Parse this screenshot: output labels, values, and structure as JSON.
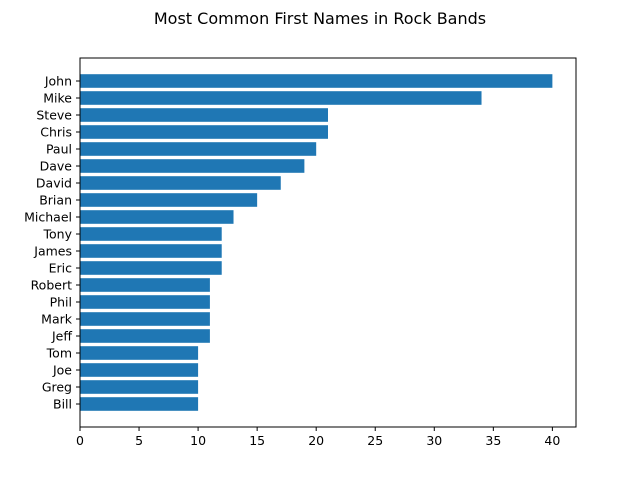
{
  "chart_data": {
    "type": "bar",
    "orientation": "horizontal",
    "title": "Most Common First Names in Rock Bands",
    "xlabel": "",
    "ylabel": "",
    "categories": [
      "John",
      "Mike",
      "Steve",
      "Chris",
      "Paul",
      "Dave",
      "David",
      "Brian",
      "Michael",
      "Tony",
      "James",
      "Eric",
      "Robert",
      "Phil",
      "Mark",
      "Jeff",
      "Tom",
      "Joe",
      "Greg",
      "Bill"
    ],
    "values": [
      40,
      34,
      21,
      21,
      20,
      19,
      17,
      15,
      13,
      12,
      12,
      12,
      11,
      11,
      11,
      11,
      10,
      10,
      10,
      10
    ],
    "xlim": [
      0,
      42
    ],
    "xticks": [
      0,
      5,
      10,
      15,
      20,
      25,
      30,
      35,
      40
    ],
    "grid": false,
    "bar_color": "#1f77b4"
  }
}
